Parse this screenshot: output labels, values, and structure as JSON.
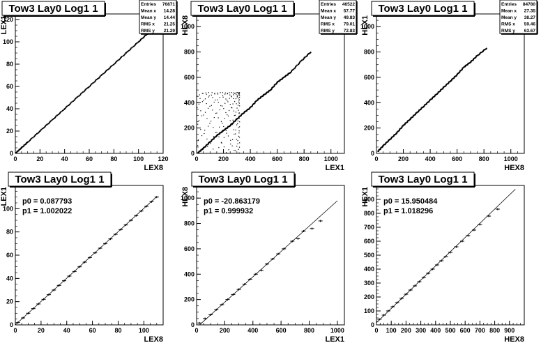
{
  "chart_data": [
    {
      "type": "scatter",
      "title": "Tow3 Lay0 Log1 1",
      "xlabel": "LEX8",
      "ylabel": "LEX1",
      "xlim": [
        0,
        120
      ],
      "ylim": [
        0,
        125
      ],
      "xticks": [
        "0",
        "20",
        "40",
        "60",
        "80",
        "100",
        "120"
      ],
      "yticks": [
        "0",
        "20",
        "40",
        "60",
        "80",
        "100",
        "120"
      ],
      "stats": [
        {
          "label": "Entries",
          "value": "76871"
        },
        {
          "label": "Mean x",
          "value": "14.28"
        },
        {
          "label": "Mean y",
          "value": "14.44"
        },
        {
          "label": "RMS x",
          "value": "21.25"
        },
        {
          "label": "RMS y",
          "value": "21.29"
        }
      ],
      "points": [
        [
          0.5,
          0.5
        ],
        [
          5,
          5
        ],
        [
          10,
          10
        ],
        [
          20,
          20
        ],
        [
          30,
          30
        ],
        [
          40,
          40
        ],
        [
          50,
          50
        ],
        [
          60,
          60
        ],
        [
          70,
          70
        ],
        [
          80,
          80
        ],
        [
          90,
          90
        ],
        [
          100,
          100
        ],
        [
          108,
          108
        ]
      ]
    },
    {
      "type": "scatter",
      "title": "Tow3 Lay0 Log1 1",
      "xlabel": "LEX1",
      "ylabel": "HEX8",
      "xlim": [
        0,
        1100
      ],
      "ylim": [
        0,
        1100
      ],
      "xticks": [
        "0",
        "200",
        "400",
        "600",
        "800",
        "1000"
      ],
      "yticks": [
        "0",
        "200",
        "400",
        "600",
        "800",
        "1000"
      ],
      "stats": [
        {
          "label": "Entries",
          "value": "46522"
        },
        {
          "label": "Mean x",
          "value": "57.77"
        },
        {
          "label": "Mean y",
          "value": "49.83"
        },
        {
          "label": "RMS x",
          "value": "79.01"
        },
        {
          "label": "RMS y",
          "value": "72.83"
        }
      ],
      "points": [
        [
          10,
          5
        ],
        [
          50,
          40
        ],
        [
          100,
          90
        ],
        [
          150,
          140
        ],
        [
          200,
          180
        ],
        [
          250,
          220
        ],
        [
          300,
          270
        ],
        [
          350,
          320
        ],
        [
          400,
          360
        ],
        [
          450,
          420
        ],
        [
          500,
          460
        ],
        [
          550,
          500
        ],
        [
          600,
          560
        ],
        [
          650,
          600
        ],
        [
          700,
          640
        ],
        [
          780,
          730
        ],
        [
          850,
          800
        ]
      ]
    },
    {
      "type": "scatter",
      "title": "Tow3 Lay0 Log1 1",
      "xlabel": "HEX8",
      "ylabel": "HEX1",
      "xlim": [
        0,
        1100
      ],
      "ylim": [
        0,
        1100
      ],
      "xticks": [
        "0",
        "200",
        "400",
        "600",
        "800",
        "1000"
      ],
      "yticks": [
        "0",
        "200",
        "400",
        "600",
        "800",
        "1000"
      ],
      "stats": [
        {
          "label": "Entries",
          "value": "84780"
        },
        {
          "label": "Mean x",
          "value": "27.35"
        },
        {
          "label": "Mean y",
          "value": "38.27"
        },
        {
          "label": "RMS x",
          "value": "59.46"
        },
        {
          "label": "RMS y",
          "value": "63.67"
        }
      ],
      "points": [
        [
          10,
          15
        ],
        [
          50,
          60
        ],
        [
          100,
          110
        ],
        [
          150,
          160
        ],
        [
          200,
          220
        ],
        [
          250,
          270
        ],
        [
          300,
          320
        ],
        [
          350,
          370
        ],
        [
          400,
          420
        ],
        [
          450,
          470
        ],
        [
          500,
          520
        ],
        [
          550,
          570
        ],
        [
          600,
          620
        ],
        [
          650,
          680
        ],
        [
          700,
          720
        ],
        [
          750,
          770
        ],
        [
          820,
          830
        ]
      ]
    },
    {
      "type": "line",
      "title": "Tow3 Lay0 Log1 1",
      "xlabel": "LEX8",
      "ylabel": "LEX1",
      "xlim": [
        0,
        115
      ],
      "ylim": [
        0,
        120
      ],
      "xticks": [
        "0",
        "20",
        "40",
        "60",
        "80",
        "100"
      ],
      "yticks": [
        "0",
        "20",
        "40",
        "60",
        "80",
        "100"
      ],
      "fit": {
        "p0_label": "p0 = 0.087793",
        "p1_label": "p1 = 1.002022",
        "p0": 0.087793,
        "p1": 1.002022,
        "xmin": 0,
        "xmax": 110
      },
      "points": [
        [
          2,
          2
        ],
        [
          6,
          6
        ],
        [
          10,
          10
        ],
        [
          14,
          14
        ],
        [
          18,
          18
        ],
        [
          22,
          22
        ],
        [
          26,
          26
        ],
        [
          30,
          30
        ],
        [
          34,
          34
        ],
        [
          38,
          38
        ],
        [
          42,
          42
        ],
        [
          46,
          46
        ],
        [
          50,
          50
        ],
        [
          54,
          54
        ],
        [
          58,
          58
        ],
        [
          62,
          62
        ],
        [
          66,
          66
        ],
        [
          70,
          70
        ],
        [
          74,
          74
        ],
        [
          78,
          78
        ],
        [
          82,
          82
        ],
        [
          86,
          86
        ],
        [
          90,
          90
        ],
        [
          94,
          94
        ],
        [
          98,
          98
        ],
        [
          102,
          102
        ],
        [
          106,
          106
        ],
        [
          110,
          110
        ]
      ]
    },
    {
      "type": "line",
      "title": "Tow3 Lay0 Log1 1",
      "xlabel": "LEX1",
      "ylabel": "HEX8",
      "xlim": [
        0,
        1050
      ],
      "ylim": [
        0,
        1100
      ],
      "xticks": [
        "0",
        "200",
        "400",
        "600",
        "800",
        "1000"
      ],
      "yticks": [
        "0",
        "200",
        "400",
        "600",
        "800",
        "1000"
      ],
      "fit": {
        "p0_label": "p0 = -20.863179",
        "p1_label": "p1 = 0.999932",
        "p0": -20.863179,
        "p1": 0.999932,
        "xmin": 0,
        "xmax": 1000
      },
      "points": [
        [
          20,
          15
        ],
        [
          60,
          50
        ],
        [
          100,
          80
        ],
        [
          140,
          120
        ],
        [
          180,
          160
        ],
        [
          220,
          200
        ],
        [
          260,
          240
        ],
        [
          300,
          280
        ],
        [
          340,
          320
        ],
        [
          380,
          360
        ],
        [
          420,
          400
        ],
        [
          460,
          430
        ],
        [
          500,
          480
        ],
        [
          540,
          520
        ],
        [
          580,
          560
        ],
        [
          620,
          600
        ],
        [
          680,
          660
        ],
        [
          720,
          680
        ],
        [
          760,
          740
        ],
        [
          820,
          760
        ],
        [
          880,
          820
        ]
      ]
    },
    {
      "type": "line",
      "title": "Tow3 Lay0 Log1 1",
      "xlabel": "HEX8",
      "ylabel": "HEX1",
      "xlim": [
        0,
        1000
      ],
      "ylim": [
        0,
        1000
      ],
      "xticks": [
        "0",
        "100",
        "200",
        "300",
        "400",
        "500",
        "600",
        "700",
        "800",
        "900"
      ],
      "yticks": [
        "0",
        "100",
        "200",
        "300",
        "400",
        "500",
        "600",
        "700",
        "800",
        "900"
      ],
      "fit": {
        "p0_label": "p0 = 15.950484",
        "p1_label": "p1 = 1.018296",
        "p0": 15.950484,
        "p1": 1.018296,
        "xmin": 0,
        "xmax": 940
      },
      "points": [
        [
          20,
          40
        ],
        [
          50,
          70
        ],
        [
          80,
          100
        ],
        [
          110,
          130
        ],
        [
          140,
          160
        ],
        [
          170,
          190
        ],
        [
          200,
          220
        ],
        [
          230,
          250
        ],
        [
          260,
          280
        ],
        [
          290,
          310
        ],
        [
          320,
          340
        ],
        [
          350,
          370
        ],
        [
          380,
          400
        ],
        [
          410,
          430
        ],
        [
          440,
          460
        ],
        [
          470,
          490
        ],
        [
          500,
          520
        ],
        [
          540,
          560
        ],
        [
          580,
          600
        ],
        [
          620,
          640
        ],
        [
          660,
          680
        ],
        [
          700,
          720
        ],
        [
          760,
          780
        ],
        [
          820,
          830
        ]
      ]
    }
  ]
}
